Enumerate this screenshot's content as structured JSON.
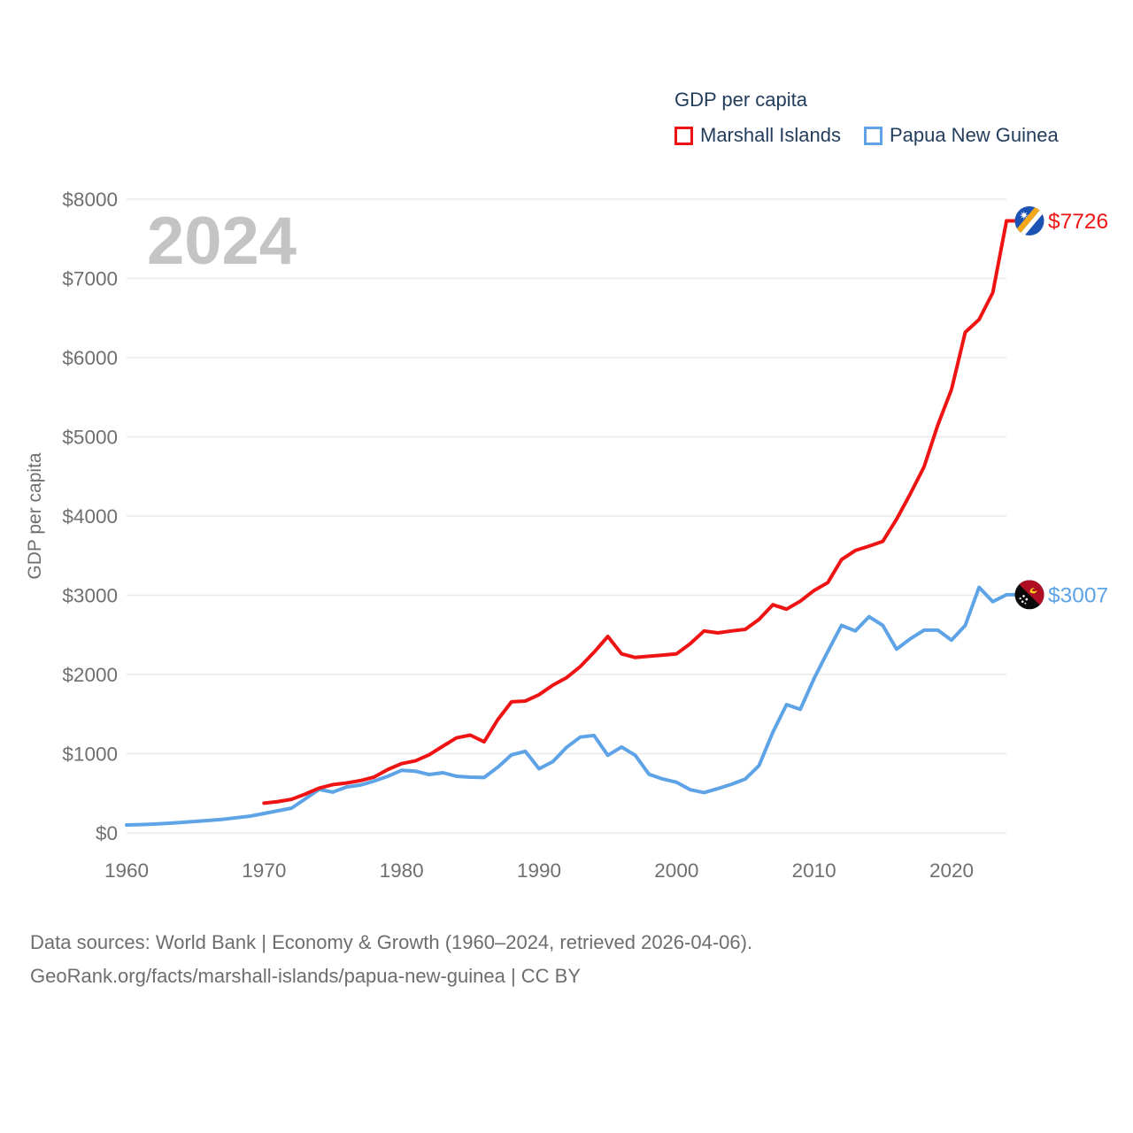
{
  "legend": {
    "title": "GDP per capita",
    "entries": [
      {
        "label": "Marshall Islands",
        "color": "#ef1414"
      },
      {
        "label": "Papua New Guinea",
        "color": "#5ea3e6"
      }
    ]
  },
  "watermark": "2024",
  "footer": {
    "line1": "Data sources: World Bank | Economy & Growth (1960–2024, retrieved 2026-04-06).",
    "line2": "GeoRank.org/facts/marshall-islands/papua-new-guinea | CC BY"
  },
  "chart_data": {
    "type": "line",
    "title": "GDP per capita",
    "ylabel": "GDP per capita",
    "xlim": [
      1960,
      2024
    ],
    "ylim": [
      0,
      8000
    ],
    "grid": true,
    "legend_position": "top-right",
    "x_ticks": [
      {
        "value": 1960,
        "label": "1960"
      },
      {
        "value": 1970,
        "label": "1970"
      },
      {
        "value": 1980,
        "label": "1980"
      },
      {
        "value": 1990,
        "label": "1990"
      },
      {
        "value": 2000,
        "label": "2000"
      },
      {
        "value": 2010,
        "label": "2010"
      },
      {
        "value": 2020,
        "label": "2020"
      }
    ],
    "y_ticks": [
      {
        "value": 0,
        "label": "$0"
      },
      {
        "value": 1000,
        "label": "$1000"
      },
      {
        "value": 2000,
        "label": "$2000"
      },
      {
        "value": 3000,
        "label": "$3000"
      },
      {
        "value": 4000,
        "label": "$4000"
      },
      {
        "value": 5000,
        "label": "$5000"
      },
      {
        "value": 6000,
        "label": "$6000"
      },
      {
        "value": 7000,
        "label": "$7000"
      },
      {
        "value": 8000,
        "label": "$8000"
      }
    ],
    "series": [
      {
        "name": "Papua New Guinea",
        "color": "#5ea3e6",
        "flag": "papua-new-guinea",
        "end_label": "$3007",
        "start_year": 1960,
        "values": [
          101,
          105,
          112,
          122,
          133,
          145,
          158,
          172,
          192,
          212,
          246,
          279,
          313,
          430,
          550,
          515,
          580,
          604,
          655,
          715,
          790,
          780,
          737,
          760,
          715,
          704,
          700,
          830,
          985,
          1030,
          810,
          900,
          1080,
          1210,
          1230,
          980,
          1085,
          980,
          740,
          680,
          640,
          545,
          510,
          560,
          615,
          680,
          850,
          1270,
          1620,
          1560,
          1950,
          2290,
          2620,
          2550,
          2730,
          2620,
          2320,
          2450,
          2560,
          2560,
          2433,
          2620,
          3100,
          2920,
          3007
        ]
      },
      {
        "name": "Marshall Islands",
        "color": "#ef1414",
        "flag": "marshall-islands",
        "end_label": "$7726",
        "start_year": 1970,
        "values": [
          375,
          395,
          425,
          490,
          565,
          610,
          630,
          660,
          705,
          800,
          875,
          910,
          985,
          1095,
          1200,
          1235,
          1150,
          1430,
          1655,
          1665,
          1745,
          1865,
          1960,
          2100,
          2280,
          2480,
          2260,
          2215,
          2230,
          2245,
          2260,
          2390,
          2550,
          2525,
          2550,
          2570,
          2695,
          2880,
          2825,
          2925,
          3060,
          3160,
          3450,
          3565,
          3620,
          3680,
          3960,
          4280,
          4620,
          5150,
          5600,
          6320,
          6480,
          6820,
          7726
        ]
      }
    ],
    "flag_colors": {
      "marshall_blue": "#1b52b4",
      "marshall_orange": "#f5a81c",
      "png_red": "#ae0f25",
      "png_black": "#0a0a0a",
      "png_yellow": "#f8d21a"
    },
    "style_colors": {
      "grid": "#eaeaea",
      "axis_text": "#6f6f6f",
      "watermark": "#c4c4c4"
    }
  }
}
